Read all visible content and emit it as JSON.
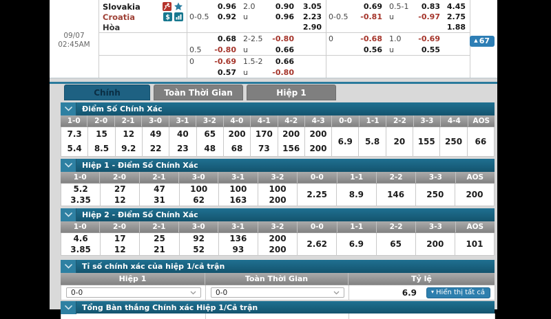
{
  "match_panel": {
    "date": "09/07",
    "time": "02:45AM",
    "badge_label": "67",
    "groups": [
      {
        "rows": [
          {
            "team": "Slovakia",
            "team_style": "home",
            "icons": [
              "live-icon",
              "star-icon"
            ],
            "cells": [
              "",
              "0.96",
              "2.0",
              "0.90",
              "3.05",
              "",
              "0.69",
              "0.5-1",
              "0.83",
              "4.45"
            ]
          },
          {
            "team": "Croatia",
            "team_style": "away",
            "icons": [
              "dollar-icon",
              "chart-icon"
            ],
            "cells": [
              "0-0.5",
              "0.92",
              "u",
              "0.96",
              "2.23",
              "0-0.5",
              "-0.81",
              "u",
              "-0.97",
              "2.75"
            ]
          },
          {
            "team": "Hòa",
            "team_style": "draw",
            "icons": [],
            "cells": [
              "",
              "",
              "",
              "",
              "2.90",
              "",
              "",
              "",
              "",
              "1.88"
            ]
          }
        ]
      },
      {
        "rows": [
          {
            "cells": [
              "",
              "0.68",
              "2-2.5",
              "-0.80",
              "",
              "0",
              "-0.68",
              "1.0",
              "-0.69",
              ""
            ]
          },
          {
            "cells": [
              "0.5",
              "-0.80",
              "u",
              "0.66",
              "",
              "",
              "0.56",
              "u",
              "0.55",
              ""
            ]
          }
        ]
      },
      {
        "rows": [
          {
            "cells": [
              "0",
              "-0.69",
              "1.5-2",
              "0.66",
              "",
              "",
              "",
              "",
              "",
              ""
            ]
          },
          {
            "cells": [
              "",
              "0.57",
              "u",
              "-0.80",
              "",
              "",
              "",
              "",
              "",
              ""
            ]
          }
        ]
      }
    ]
  },
  "tabs": [
    {
      "label": "Chính",
      "active": true
    },
    {
      "label": "Toàn Thời Gian",
      "active": false
    },
    {
      "label": "Hiệp 1",
      "active": false
    }
  ],
  "score_sections": [
    {
      "title": "Điểm Số Chính Xác",
      "columns": [
        "1-0",
        "2-0",
        "2-1",
        "3-0",
        "3-1",
        "3-2",
        "4-0",
        "4-1",
        "4-2",
        "4-3",
        "0-0",
        "1-1",
        "2-2",
        "3-3",
        "4-4",
        "AOS"
      ],
      "split": 10,
      "row1": [
        "7.3",
        "15",
        "12",
        "49",
        "40",
        "65",
        "200",
        "170",
        "200",
        "200"
      ],
      "row2": [
        "5.4",
        "8.5",
        "9.2",
        "22",
        "23",
        "48",
        "68",
        "73",
        "156",
        "200"
      ],
      "merged": [
        "6.9",
        "5.8",
        "20",
        "155",
        "250",
        "66"
      ]
    },
    {
      "title": "Hiệp 1 - Điểm Số Chính Xác",
      "columns": [
        "1-0",
        "2-0",
        "2-1",
        "3-0",
        "3-1",
        "3-2",
        "0-0",
        "1-1",
        "2-2",
        "3-3",
        "AOS"
      ],
      "split": 6,
      "row1": [
        "5.2",
        "27",
        "47",
        "100",
        "100",
        "100"
      ],
      "row2": [
        "3.35",
        "12",
        "31",
        "62",
        "163",
        "200"
      ],
      "merged": [
        "2.25",
        "8.9",
        "146",
        "250",
        "200"
      ]
    },
    {
      "title": "Hiệp 2 - Điểm Số Chính Xác",
      "columns": [
        "1-0",
        "2-0",
        "2-1",
        "3-0",
        "3-1",
        "3-2",
        "0-0",
        "1-1",
        "2-2",
        "3-3",
        "AOS"
      ],
      "split": 6,
      "row1": [
        "4.6",
        "17",
        "25",
        "92",
        "136",
        "200"
      ],
      "row2": [
        "3.85",
        "12",
        "21",
        "52",
        "93",
        "200"
      ],
      "merged": [
        "2.62",
        "6.9",
        "65",
        "200",
        "101"
      ]
    }
  ],
  "combo_section": {
    "title": "Tỉ số chính xác của hiệp 1/cả trận",
    "columns": [
      "Hiệp 1",
      "Toàn Thời Gian",
      "Tỷ lệ"
    ],
    "select1": "0-0",
    "select2": "0-0",
    "rate": "6.9",
    "show_all_label": "Hiển thị tất cả"
  },
  "last_section": {
    "title": "Tổng Bàn thắng Chính xác Hiệp 1/Cả trận"
  },
  "colors": {
    "section_teal": "#19647f",
    "chevron_square": "#2e80a2",
    "tab_active_bg": "#1e6182",
    "tab_inactive_bg": "#7f7f7f",
    "negative_odds": "#a5342a",
    "away_team": "#9e4136",
    "badge_blue": "#2d7eb5",
    "button_blue": "#2d7fae"
  }
}
